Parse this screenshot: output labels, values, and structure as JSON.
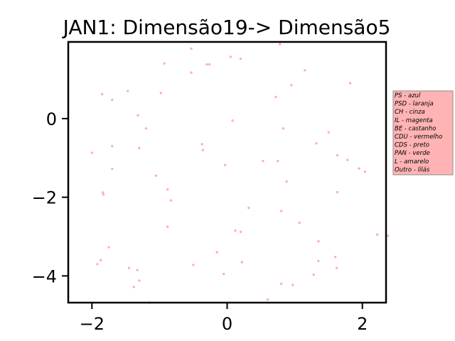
{
  "chart_data": {
    "type": "scatter",
    "title": "JAN1: Dimensão19-> Dimensão5",
    "xlabel": "",
    "ylabel": "",
    "xlim": [
      -2.35,
      2.35
    ],
    "ylim": [
      -4.68,
      1.95
    ],
    "x_ticks": [
      -2,
      0,
      2
    ],
    "x_tick_labels": [
      "−2",
      "0",
      "2"
    ],
    "y_ticks": [
      0,
      -2,
      -4
    ],
    "y_tick_labels": [
      "0",
      "−2",
      "−4"
    ],
    "grid": false,
    "point_color": "#ffb0b0",
    "legend": {
      "placement": "outside-right",
      "background": "#ffb3b3",
      "border": "#999999",
      "entries": [
        "PS - azul",
        "PSD - laranja",
        "CH - cinza",
        "IL - magenta",
        "BE - castanho",
        "CDU - vermelho",
        "CDS - preto",
        "PAN - verde",
        "L - amarelo",
        "Outro - lilás"
      ]
    },
    "points": [
      [
        -0.53,
        1.78
      ],
      [
        0.78,
        1.89
      ],
      [
        0.05,
        1.57
      ],
      [
        0.2,
        1.52
      ],
      [
        -0.93,
        1.4
      ],
      [
        -0.3,
        1.38
      ],
      [
        -0.26,
        1.38
      ],
      [
        -0.53,
        1.17
      ],
      [
        1.15,
        1.23
      ],
      [
        1.82,
        0.9
      ],
      [
        0.95,
        0.85
      ],
      [
        -1.85,
        0.62
      ],
      [
        -1.47,
        0.7
      ],
      [
        -1.7,
        0.48
      ],
      [
        -0.98,
        0.65
      ],
      [
        0.72,
        0.55
      ],
      [
        -1.32,
        0.08
      ],
      [
        0.08,
        -0.05
      ],
      [
        -1.2,
        -0.25
      ],
      [
        0.83,
        -0.25
      ],
      [
        1.5,
        -0.35
      ],
      [
        1.32,
        -0.63
      ],
      [
        -0.37,
        -0.65
      ],
      [
        -0.36,
        -0.8
      ],
      [
        -1.3,
        -0.75
      ],
      [
        -1.7,
        -0.7
      ],
      [
        1.63,
        -0.93
      ],
      [
        1.78,
        -1.05
      ],
      [
        1.95,
        -1.27
      ],
      [
        2.04,
        -1.35
      ],
      [
        -2.0,
        -0.87
      ],
      [
        -0.03,
        -1.18
      ],
      [
        0.53,
        -1.08
      ],
      [
        0.75,
        -1.08
      ],
      [
        -1.7,
        -1.28
      ],
      [
        -1.05,
        -1.45
      ],
      [
        0.88,
        -1.6
      ],
      [
        -0.88,
        -1.8
      ],
      [
        -0.83,
        -2.08
      ],
      [
        -1.84,
        -1.88
      ],
      [
        -1.83,
        -1.93
      ],
      [
        1.63,
        -1.87
      ],
      [
        0.32,
        -2.27
      ],
      [
        0.8,
        -2.35
      ],
      [
        -0.88,
        -2.75
      ],
      [
        1.07,
        -2.65
      ],
      [
        0.12,
        -2.85
      ],
      [
        0.2,
        -2.88
      ],
      [
        2.22,
        -2.95
      ],
      [
        2.38,
        -2.98
      ],
      [
        1.35,
        -3.12
      ],
      [
        -1.75,
        -3.27
      ],
      [
        -0.15,
        -3.4
      ],
      [
        1.6,
        -3.52
      ],
      [
        -1.87,
        -3.6
      ],
      [
        -1.92,
        -3.7
      ],
      [
        0.22,
        -3.65
      ],
      [
        1.35,
        -3.62
      ],
      [
        -0.5,
        -3.72
      ],
      [
        1.62,
        -3.8
      ],
      [
        -1.45,
        -3.8
      ],
      [
        -1.33,
        -3.85
      ],
      [
        -0.05,
        -3.95
      ],
      [
        1.28,
        -3.97
      ],
      [
        -1.3,
        -4.12
      ],
      [
        -1.38,
        -4.28
      ],
      [
        0.8,
        -4.2
      ],
      [
        0.97,
        -4.23
      ],
      [
        0.6,
        -4.6
      ],
      [
        -1.15,
        -4.68
      ]
    ]
  }
}
